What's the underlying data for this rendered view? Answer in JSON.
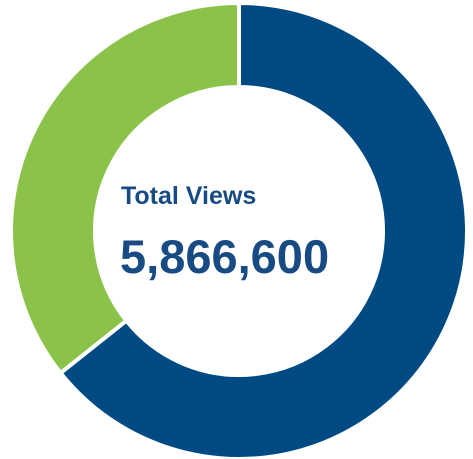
{
  "center": {
    "label": "Total Views",
    "value": "5,866,600"
  },
  "colors": {
    "primary": "#004A84",
    "secondary": "#8BC34A",
    "divider": "#FFFFFF",
    "text": "#184B84"
  },
  "chart_data": {
    "type": "pie",
    "title": "",
    "total_label": "Total Views",
    "total_value": 5866600,
    "slices": [
      {
        "value": 0.643
      },
      {
        "value": 0.357
      }
    ]
  }
}
